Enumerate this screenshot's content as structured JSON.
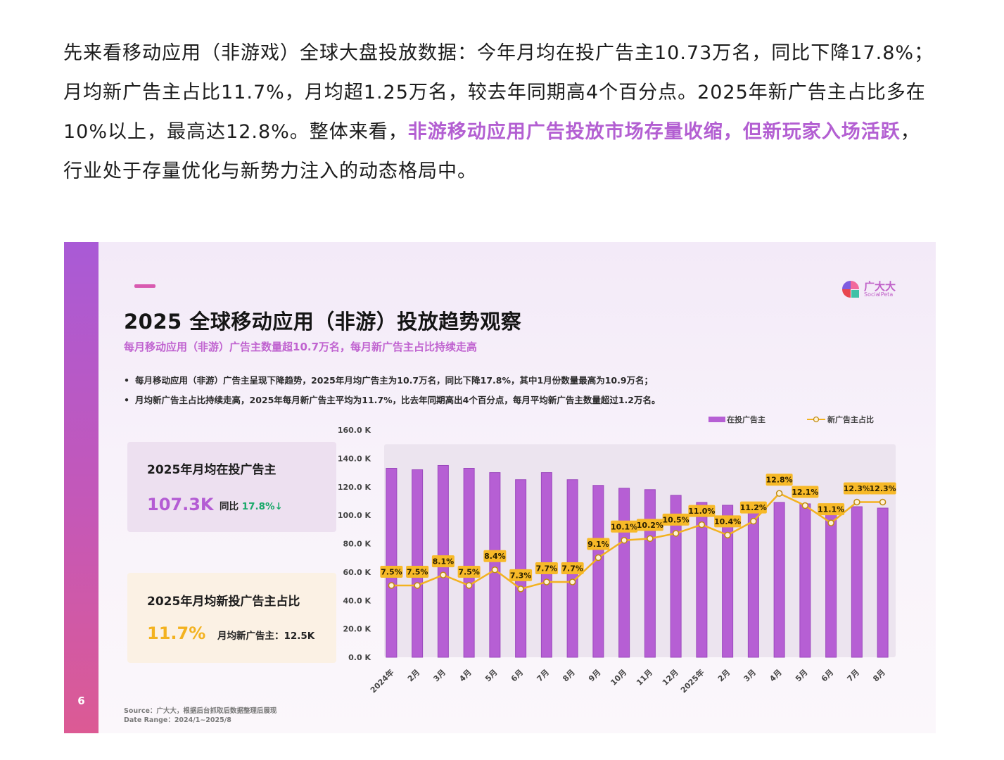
{
  "intro": {
    "part1": "先来看移动应用（非游戏）全球大盘投放数据：今年月均在投广告主10.73万名，同比下降17.8%；月均新广告主占比11.7%，月均超1.25万名，较去年同期高4个百分点。2025年新广告主占比多在10%以上，最高达12.8%。整体来看，",
    "highlight": "非游移动应用广告投放市场存量收缩，但新玩家入场活跃",
    "part2": "，行业处于存量优化与新势力注入的动态格局中。"
  },
  "slide": {
    "page_number": "6",
    "logo": {
      "name": "广大大",
      "sub": "SocialPeta"
    },
    "title": "2025 全球移动应用（非游）投放趋势观察",
    "subtitle": "每月移动应用（非游）广告主数量超10.7万名，每月新广告主占比持续走高",
    "bullets": [
      "每月移动应用（非游）广告主呈现下降趋势，2025年月均广告主为10.7万名，同比下降17.8%，其中1月份数量最高为10.9万名；",
      "月均新广告主占比持续走高，2025年每月新广告主平均为11.7%，比去年同期高出4个百分点，每月平均新广告主数量超过1.2万名。"
    ],
    "bullet_marker": "•",
    "kpi1": {
      "title": "2025年月均在投广告主",
      "value": "107.3K",
      "note_label": "同比 ",
      "note_value": "17.8%",
      "arrow": "↓"
    },
    "kpi2": {
      "title": "2025年月均新投广告主占比",
      "value": "11.7%",
      "note": "月均新广告主：12.5K"
    },
    "source": "Source：广大大，根据后台抓取后数据整理后展现",
    "date_range": "Date Range：2024/1~2025/8"
  },
  "colors": {
    "bar": "#b65fd4",
    "bar_stroke": "#9b49bd",
    "line": "#f3b21f",
    "label_bg": "#f7b928",
    "grid_bg": "#ece4ef"
  },
  "chart_data": {
    "type": "bar",
    "categories": [
      "2024年",
      "2月",
      "3月",
      "4月",
      "5月",
      "6月",
      "7月",
      "8月",
      "9月",
      "10月",
      "11月",
      "12月",
      "2025年",
      "2月",
      "3月",
      "4月",
      "5月",
      "6月",
      "7月",
      "8月"
    ],
    "ylim": [
      0,
      160
    ],
    "yticks": [
      "0.0 K",
      "20.0 K",
      "40.0 K",
      "60.0 K",
      "80.0 K",
      "100.0 K",
      "120.0 K",
      "140.0 K",
      "160.0 K"
    ],
    "series": [
      {
        "name": "在投广告主",
        "type": "bar",
        "unit": "K",
        "values": [
          133,
          132,
          135,
          133,
          130,
          125,
          130,
          125,
          121,
          119,
          118,
          114,
          109,
          107,
          107,
          109,
          108,
          108,
          106,
          105
        ]
      },
      {
        "name": "新广告主占比",
        "type": "line",
        "unit": "%",
        "values": [
          7.5,
          7.5,
          8.1,
          7.5,
          8.4,
          7.3,
          7.7,
          7.7,
          9.1,
          10.1,
          10.2,
          10.5,
          11.0,
          10.4,
          11.2,
          12.8,
          12.1,
          11.1,
          12.3,
          12.3
        ],
        "labels": [
          "7.5%",
          "7.5%",
          "8.1%",
          "7.5%",
          "8.4%",
          "7.3%",
          "7.7%",
          "7.7%",
          "9.1%",
          "10.1%",
          "10.2%",
          "10.5%",
          "11.0%",
          "10.4%",
          "11.2%",
          "12.8%",
          "12.1%",
          "11.1%",
          "12.3%",
          "12.3%"
        ]
      }
    ],
    "legend_position": "top-right",
    "grid": false
  }
}
